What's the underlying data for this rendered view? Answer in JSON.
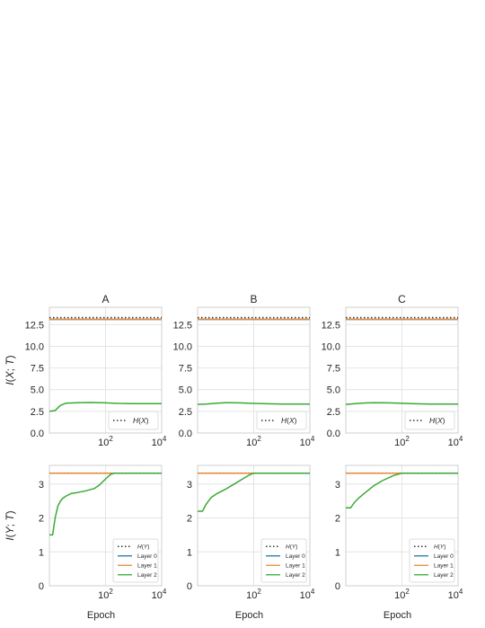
{
  "colors": {
    "hx_line": "#333333",
    "layer0": "#1f77b4",
    "layer1": "#e8893a",
    "layer2": "#3aaa35",
    "grid": "#e4e4e4",
    "frame": "#cfcfcf"
  },
  "chart_data": [
    {
      "type": "line",
      "title": "A",
      "ylabel": "I(X; T)",
      "xlabel": "",
      "xscale": "log",
      "xlim": [
        1,
        10000
      ],
      "xticks": [
        "10^2",
        "10^4"
      ],
      "ylim": [
        0,
        14.5
      ],
      "yticks": [
        "0.0",
        "2.5",
        "5.0",
        "7.5",
        "10.0",
        "12.5"
      ],
      "grid": true,
      "legend_position": "lower-right",
      "series": [
        {
          "name": "H(X)",
          "style": "dotted",
          "x": [
            1,
            10000
          ],
          "y": [
            13.3,
            13.3
          ]
        },
        {
          "name": "",
          "color": "layer0",
          "x": [
            1,
            10000
          ],
          "y": [
            13.1,
            13.1
          ]
        },
        {
          "name": "",
          "color": "layer1",
          "x": [
            1,
            10000
          ],
          "y": [
            13.1,
            13.1
          ]
        },
        {
          "name": "",
          "color": "layer2",
          "x": [
            1,
            1.6,
            2.5,
            4,
            10,
            30,
            100,
            300,
            1000,
            10000
          ],
          "y": [
            2.5,
            2.6,
            3.2,
            3.45,
            3.5,
            3.52,
            3.48,
            3.42,
            3.4,
            3.4
          ]
        }
      ]
    },
    {
      "type": "line",
      "title": "B",
      "ylabel": "",
      "xlabel": "",
      "xscale": "log",
      "xlim": [
        1,
        10000
      ],
      "xticks": [
        "10^2",
        "10^4"
      ],
      "ylim": [
        0,
        14.5
      ],
      "yticks": [
        "0.0",
        "2.5",
        "5.0",
        "7.5",
        "10.0",
        "12.5"
      ],
      "grid": true,
      "legend_position": "lower-right",
      "series": [
        {
          "name": "H(X)",
          "style": "dotted",
          "x": [
            1,
            10000
          ],
          "y": [
            13.3,
            13.3
          ]
        },
        {
          "name": "",
          "color": "layer0",
          "x": [
            1,
            10000
          ],
          "y": [
            13.1,
            13.1
          ]
        },
        {
          "name": "",
          "color": "layer1",
          "x": [
            1,
            10000
          ],
          "y": [
            13.1,
            13.1
          ]
        },
        {
          "name": "",
          "color": "layer2",
          "x": [
            1,
            2,
            5,
            10,
            30,
            100,
            300,
            1000,
            10000
          ],
          "y": [
            3.3,
            3.35,
            3.45,
            3.5,
            3.48,
            3.42,
            3.38,
            3.35,
            3.35
          ]
        }
      ]
    },
    {
      "type": "line",
      "title": "C",
      "ylabel": "",
      "xlabel": "",
      "xscale": "log",
      "xlim": [
        1,
        10000
      ],
      "xticks": [
        "10^2",
        "10^4"
      ],
      "ylim": [
        0,
        14.5
      ],
      "yticks": [
        "0.0",
        "2.5",
        "5.0",
        "7.5",
        "10.0",
        "12.5"
      ],
      "grid": true,
      "legend_position": "lower-right",
      "series": [
        {
          "name": "H(X)",
          "style": "dotted",
          "x": [
            1,
            10000
          ],
          "y": [
            13.3,
            13.3
          ]
        },
        {
          "name": "",
          "color": "layer0",
          "x": [
            1,
            10000
          ],
          "y": [
            13.1,
            13.1
          ]
        },
        {
          "name": "",
          "color": "layer1",
          "x": [
            1,
            10000
          ],
          "y": [
            13.1,
            13.1
          ]
        },
        {
          "name": "",
          "color": "layer2",
          "x": [
            1,
            2,
            5,
            10,
            30,
            100,
            300,
            1000,
            10000
          ],
          "y": [
            3.3,
            3.38,
            3.47,
            3.5,
            3.48,
            3.43,
            3.38,
            3.35,
            3.35
          ]
        }
      ]
    },
    {
      "type": "line",
      "title": "",
      "ylabel": "I(Y; T)",
      "xlabel": "Epoch",
      "xscale": "log",
      "xlim": [
        1,
        10000
      ],
      "xticks": [
        "10^2",
        "10^4"
      ],
      "ylim": [
        0,
        3.55
      ],
      "yticks": [
        "0",
        "1",
        "2",
        "3"
      ],
      "grid": true,
      "legend_position": "lower-right",
      "series": [
        {
          "name": "H(Y)",
          "style": "dotted",
          "x": [
            1,
            10000
          ],
          "y": [
            3.32,
            3.32
          ]
        },
        {
          "name": "Layer 0",
          "color": "layer0",
          "x": [
            1,
            10000
          ],
          "y": [
            3.32,
            3.32
          ]
        },
        {
          "name": "Layer 1",
          "color": "layer1",
          "x": [
            1,
            10000
          ],
          "y": [
            3.32,
            3.32
          ]
        },
        {
          "name": "Layer 2",
          "color": "layer2",
          "x": [
            1,
            1.3,
            1.6,
            2,
            2.5,
            3,
            4,
            6,
            10,
            20,
            40,
            60,
            100,
            150,
            200,
            400,
            1000,
            10000
          ],
          "y": [
            1.5,
            1.5,
            2.0,
            2.35,
            2.5,
            2.58,
            2.65,
            2.72,
            2.75,
            2.8,
            2.87,
            2.97,
            3.15,
            3.28,
            3.32,
            3.32,
            3.32,
            3.32
          ]
        }
      ]
    },
    {
      "type": "line",
      "title": "",
      "ylabel": "",
      "xlabel": "Epoch",
      "xscale": "log",
      "xlim": [
        1,
        10000
      ],
      "xticks": [
        "10^2",
        "10^4"
      ],
      "ylim": [
        0,
        3.55
      ],
      "yticks": [
        "0",
        "1",
        "2",
        "3"
      ],
      "grid": true,
      "legend_position": "lower-right",
      "series": [
        {
          "name": "H(Y)",
          "style": "dotted",
          "x": [
            1,
            10000
          ],
          "y": [
            3.32,
            3.32
          ]
        },
        {
          "name": "Layer 0",
          "color": "layer0",
          "x": [
            1,
            10000
          ],
          "y": [
            3.32,
            3.32
          ]
        },
        {
          "name": "Layer 1",
          "color": "layer1",
          "x": [
            1,
            10000
          ],
          "y": [
            3.32,
            3.32
          ]
        },
        {
          "name": "Layer 2",
          "color": "layer2",
          "x": [
            1,
            1.5,
            2,
            3,
            5,
            10,
            20,
            40,
            70,
            100,
            200,
            1000,
            10000
          ],
          "y": [
            2.2,
            2.2,
            2.4,
            2.6,
            2.72,
            2.85,
            3.0,
            3.15,
            3.27,
            3.32,
            3.32,
            3.32,
            3.32
          ]
        }
      ]
    },
    {
      "type": "line",
      "title": "",
      "ylabel": "",
      "xlabel": "Epoch",
      "xscale": "log",
      "xlim": [
        1,
        10000
      ],
      "xticks": [
        "10^2",
        "10^4"
      ],
      "ylim": [
        0,
        3.55
      ],
      "yticks": [
        "0",
        "1",
        "2",
        "3"
      ],
      "grid": true,
      "legend_position": "lower-right",
      "series": [
        {
          "name": "H(Y)",
          "style": "dotted",
          "x": [
            1,
            10000
          ],
          "y": [
            3.32,
            3.32
          ]
        },
        {
          "name": "Layer 0",
          "color": "layer0",
          "x": [
            1,
            10000
          ],
          "y": [
            3.32,
            3.32
          ]
        },
        {
          "name": "Layer 1",
          "color": "layer1",
          "x": [
            1,
            10000
          ],
          "y": [
            3.32,
            3.32
          ]
        },
        {
          "name": "Layer 2",
          "color": "layer2",
          "x": [
            1,
            1.5,
            2,
            3,
            5,
            10,
            20,
            50,
            100,
            200,
            1000,
            10000
          ],
          "y": [
            2.3,
            2.3,
            2.45,
            2.6,
            2.75,
            2.95,
            3.1,
            3.25,
            3.32,
            3.32,
            3.32,
            3.32
          ]
        }
      ]
    }
  ]
}
